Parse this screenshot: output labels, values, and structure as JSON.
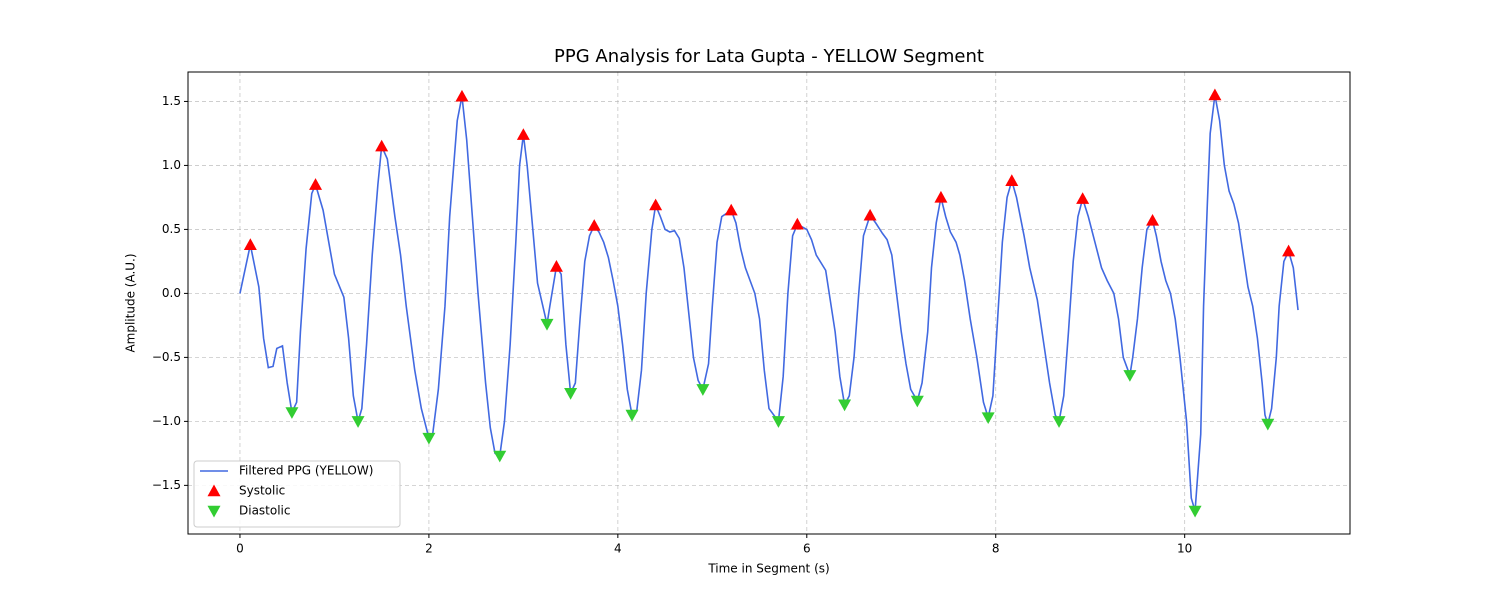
{
  "chart_data": {
    "type": "line",
    "title": "PPG Analysis for Lata Gupta - YELLOW Segment",
    "xlabel": "Time in Segment (s)",
    "ylabel": "Amplitude (A.U.)",
    "xlim": [
      -0.55,
      11.75
    ],
    "ylim": [
      -1.88,
      1.73
    ],
    "xticks": [
      0,
      2,
      4,
      6,
      8,
      10
    ],
    "yticks": [
      {
        "value": -1.5,
        "label": "−1.5"
      },
      {
        "value": -1.0,
        "label": "−1.0"
      },
      {
        "value": -0.5,
        "label": "−0.5"
      },
      {
        "value": 0,
        "label": "0.0"
      },
      0.5,
      {
        "value": 1.0,
        "label": "1.0"
      },
      1.5
    ],
    "grid": true,
    "legend": "lower left",
    "series": [
      {
        "name": "Filtered PPG (YELLOW)",
        "color": "#4169e1",
        "kind": "line",
        "x": [
          0,
          0.11,
          0.2,
          0.25,
          0.3,
          0.35,
          0.39,
          0.45,
          0.5,
          0.55,
          0.6,
          0.64,
          0.7,
          0.76,
          0.8,
          0.88,
          1.0,
          1.1,
          1.15,
          1.2,
          1.25,
          1.29,
          1.34,
          1.4,
          1.46,
          1.5,
          1.56,
          1.64,
          1.7,
          1.76,
          1.85,
          1.92,
          2.0,
          2.04,
          2.1,
          2.17,
          2.22,
          2.3,
          2.35,
          2.4,
          2.46,
          2.52,
          2.6,
          2.65,
          2.7,
          2.75,
          2.8,
          2.86,
          2.92,
          2.96,
          3.0,
          3.04,
          3.1,
          3.15,
          3.25,
          3.28,
          3.35,
          3.4,
          3.45,
          3.5,
          3.55,
          3.6,
          3.65,
          3.7,
          3.75,
          3.8,
          3.85,
          3.9,
          3.95,
          4.0,
          4.05,
          4.1,
          4.15,
          4.2,
          4.25,
          4.3,
          4.36,
          4.4,
          4.45,
          4.5,
          4.55,
          4.6,
          4.65,
          4.7,
          4.75,
          4.8,
          4.85,
          4.9,
          4.96,
          5.0,
          5.05,
          5.1,
          5.2,
          5.25,
          5.3,
          5.35,
          5.4,
          5.45,
          5.5,
          5.55,
          5.6,
          5.7,
          5.75,
          5.8,
          5.85,
          5.9,
          6.0,
          6.05,
          6.1,
          6.2,
          6.3,
          6.35,
          6.4,
          6.45,
          6.5,
          6.55,
          6.6,
          6.67,
          6.73,
          6.8,
          6.85,
          6.9,
          6.95,
          7.0,
          7.05,
          7.1,
          7.17,
          7.22,
          7.28,
          7.32,
          7.37,
          7.42,
          7.47,
          7.52,
          7.58,
          7.62,
          7.67,
          7.73,
          7.8,
          7.87,
          7.92,
          7.97,
          8.02,
          8.07,
          8.12,
          8.17,
          8.22,
          8.3,
          8.36,
          8.44,
          8.5,
          8.57,
          8.63,
          8.67,
          8.72,
          8.77,
          8.82,
          8.87,
          8.92,
          8.98,
          9.05,
          9.12,
          9.18,
          9.25,
          9.3,
          9.35,
          9.42,
          9.45,
          9.5,
          9.55,
          9.6,
          9.66,
          9.7,
          9.75,
          9.8,
          9.85,
          9.9,
          9.95,
          10.02,
          10.07,
          10.11,
          10.17,
          10.2,
          10.24,
          10.27,
          10.32,
          10.37,
          10.42,
          10.47,
          10.52,
          10.57,
          10.62,
          10.67,
          10.72,
          10.77,
          10.82,
          10.85,
          10.88,
          10.92,
          10.97,
          11.0,
          11.05,
          11.1,
          11.15,
          11.2
        ],
        "values": [
          0,
          0.38,
          0.05,
          -0.35,
          -0.58,
          -0.57,
          -0.43,
          -0.41,
          -0.7,
          -0.93,
          -0.85,
          -0.3,
          0.35,
          0.78,
          0.85,
          0.65,
          0.15,
          -0.03,
          -0.35,
          -0.8,
          -1.0,
          -0.9,
          -0.4,
          0.3,
          0.85,
          1.15,
          1.05,
          0.6,
          0.3,
          -0.1,
          -0.6,
          -0.9,
          -1.13,
          -1.1,
          -0.75,
          -0.1,
          0.6,
          1.35,
          1.54,
          1.2,
          0.6,
          0,
          -0.7,
          -1.05,
          -1.25,
          -1.27,
          -1.0,
          -0.4,
          0.4,
          1.0,
          1.24,
          1.0,
          0.5,
          0.08,
          -0.24,
          -0.1,
          0.21,
          0.15,
          -0.4,
          -0.78,
          -0.7,
          -0.2,
          0.25,
          0.45,
          0.53,
          0.48,
          0.4,
          0.28,
          0.1,
          -0.1,
          -0.4,
          -0.75,
          -0.95,
          -0.92,
          -0.6,
          0,
          0.5,
          0.69,
          0.6,
          0.5,
          0.48,
          0.49,
          0.43,
          0.2,
          -0.15,
          -0.5,
          -0.68,
          -0.75,
          -0.55,
          -0.1,
          0.4,
          0.6,
          0.65,
          0.55,
          0.35,
          0.2,
          0.1,
          0,
          -0.2,
          -0.6,
          -0.9,
          -1.0,
          -0.65,
          0,
          0.45,
          0.54,
          0.5,
          0.42,
          0.3,
          0.18,
          -0.3,
          -0.65,
          -0.87,
          -0.8,
          -0.5,
          0,
          0.45,
          0.61,
          0.55,
          0.47,
          0.42,
          0.3,
          0,
          -0.3,
          -0.55,
          -0.75,
          -0.84,
          -0.7,
          -0.3,
          0.2,
          0.55,
          0.75,
          0.6,
          0.48,
          0.4,
          0.3,
          0.1,
          -0.2,
          -0.5,
          -0.85,
          -0.97,
          -0.8,
          -0.2,
          0.4,
          0.75,
          0.88,
          0.75,
          0.45,
          0.2,
          -0.05,
          -0.35,
          -0.7,
          -0.95,
          -1.0,
          -0.8,
          -0.3,
          0.25,
          0.6,
          0.74,
          0.6,
          0.4,
          0.2,
          0.1,
          0,
          -0.2,
          -0.5,
          -0.64,
          -0.5,
          -0.2,
          0.2,
          0.5,
          0.57,
          0.45,
          0.25,
          0.1,
          0,
          -0.2,
          -0.5,
          -1.0,
          -1.6,
          -1.7,
          -1.1,
          -0.1,
          0.7,
          1.25,
          1.55,
          1.35,
          1.0,
          0.8,
          0.7,
          0.55,
          0.3,
          0.05,
          -0.1,
          -0.35,
          -0.7,
          -0.95,
          -1.02,
          -0.9,
          -0.5,
          -0.1,
          0.25,
          0.33,
          0.2,
          -0.13
        ]
      },
      {
        "name": "Systolic",
        "color": "#ff0000",
        "kind": "triangle-up",
        "x": [
          0.11,
          0.8,
          1.5,
          2.35,
          3.0,
          3.35,
          3.75,
          4.4,
          5.2,
          5.9,
          6.67,
          7.42,
          8.17,
          8.92,
          9.66,
          10.32,
          11.1
        ],
        "values": [
          0.38,
          0.85,
          1.15,
          1.54,
          1.24,
          0.21,
          0.53,
          0.69,
          0.65,
          0.54,
          0.61,
          0.75,
          0.88,
          0.74,
          0.57,
          1.55,
          0.33
        ]
      },
      {
        "name": "Diastolic",
        "color": "#32cd32",
        "kind": "triangle-down",
        "x": [
          0.55,
          1.25,
          2.0,
          2.75,
          3.25,
          3.5,
          4.15,
          4.9,
          5.7,
          6.4,
          7.17,
          7.92,
          8.67,
          9.42,
          10.11,
          10.88
        ],
        "values": [
          -0.93,
          -1.0,
          -1.13,
          -1.27,
          -0.24,
          -0.78,
          -0.95,
          -0.75,
          -1.0,
          -0.87,
          -0.84,
          -0.97,
          -1.0,
          -0.64,
          -1.7,
          -1.02
        ]
      }
    ]
  }
}
